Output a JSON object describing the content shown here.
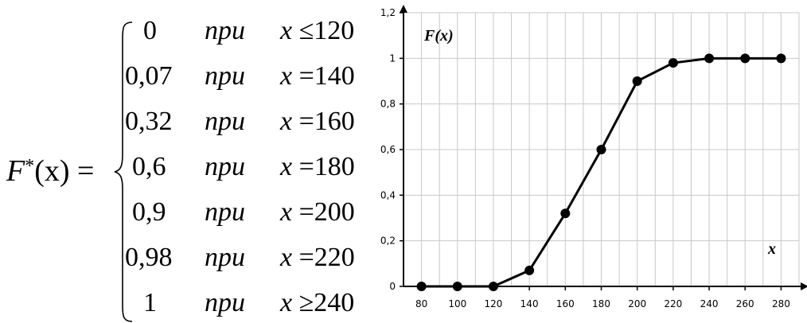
{
  "formula": {
    "lhs": {
      "name": "F",
      "superscript": "*",
      "argument": "(x) ="
    },
    "rows": [
      {
        "value": "0",
        "word": "при",
        "variable": "x",
        "relation": "≤",
        "bound": "120"
      },
      {
        "value": "0,07",
        "word": "при",
        "variable": "x",
        "relation": "=",
        "bound": "140"
      },
      {
        "value": "0,32",
        "word": "при",
        "variable": "x",
        "relation": "=",
        "bound": "160"
      },
      {
        "value": "0,6",
        "word": "при",
        "variable": "x",
        "relation": "=",
        "bound": "180"
      },
      {
        "value": "0,9",
        "word": "при",
        "variable": "x",
        "relation": "=",
        "bound": "200"
      },
      {
        "value": "0,98",
        "word": "при",
        "variable": "x",
        "relation": "=",
        "bound": "220"
      },
      {
        "value": "1",
        "word": "при",
        "variable": "x",
        "relation": "≥",
        "bound": "240"
      }
    ]
  },
  "chart_data": {
    "type": "line",
    "title": "F(x)",
    "xlabel": "x",
    "ylabel": "",
    "x": [
      80,
      100,
      120,
      140,
      160,
      180,
      200,
      220,
      240,
      260,
      280
    ],
    "series": [
      {
        "values": [
          0,
          0,
          0,
          0.07,
          0.32,
          0.6,
          0.9,
          0.98,
          1,
          1,
          1
        ]
      }
    ],
    "x_tick_labels": [
      "80",
      "100",
      "120",
      "140",
      "160",
      "180",
      "200",
      "220",
      "240",
      "260",
      "280"
    ],
    "y_ticks": [
      0,
      0.2,
      0.4,
      0.6,
      0.8,
      1,
      1.2
    ],
    "y_tick_labels": [
      "0",
      "0,2",
      "0,4",
      "0,6",
      "0,8",
      "1",
      "1,2"
    ],
    "xlim": [
      70,
      290
    ],
    "ylim": [
      0,
      1.2
    ],
    "grid": true,
    "legend": "none",
    "colors": {
      "line": "#000000",
      "grid": "#c8c8c8",
      "axis": "#000000"
    }
  }
}
